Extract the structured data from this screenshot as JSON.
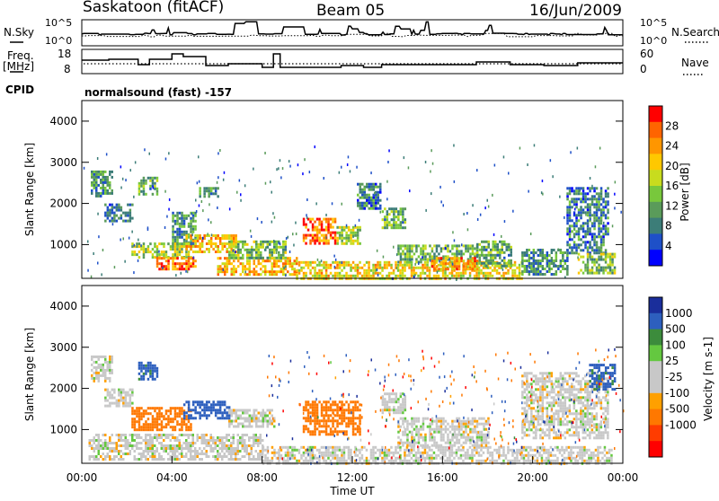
{
  "header": {
    "site": "Saskatoon (fitACF)",
    "beam": "Beam 05",
    "date": "16/Jun/2009"
  },
  "strip_nsky": {
    "left_label": "N.Sky",
    "left_ticks": [
      "10^5",
      "10^0"
    ],
    "right_label": "N.Search",
    "right_ticks": [
      "10^5",
      "10^0"
    ]
  },
  "strip_freq": {
    "left_label_1": "Freq.",
    "left_label_2": "[MHz]",
    "left_ticks": [
      "18",
      "8"
    ],
    "right_label": "Nave",
    "right_ticks": [
      "60",
      "0"
    ]
  },
  "cpid": {
    "label": "CPID",
    "value": "normalsound (fast) -157"
  },
  "colors": {
    "power_scale": [
      "#0000ff",
      "#1e50c8",
      "#3c7d78",
      "#5a9b5a",
      "#78c83c",
      "#c8dc1e",
      "#ffc800",
      "#ff9600",
      "#ff6400",
      "#ff0000"
    ],
    "velocity_scale": [
      "#1a2e9b",
      "#2d5fbe",
      "#3c8c3c",
      "#64c840",
      "#c8c8c8",
      "#c8c8c8",
      "#ffa000",
      "#ff7800",
      "#ff3c00",
      "#ff0000"
    ]
  },
  "chart_data": [
    {
      "type": "heatmap",
      "panel": "power",
      "ylabel": "Slant Range [km]",
      "xlabel": "",
      "ylim": [
        180,
        4500
      ],
      "yticks": [
        1000,
        2000,
        3000,
        4000
      ],
      "xlim": [
        0,
        24
      ],
      "colorbar": {
        "label": "Power [dB]",
        "range": [
          0,
          32
        ],
        "ticks": [
          4,
          8,
          12,
          16,
          20,
          24,
          28
        ]
      },
      "regions": [
        {
          "t0": 0.4,
          "t1": 1.3,
          "r0": 2200,
          "r1": 2800,
          "v": 10
        },
        {
          "t0": 1.0,
          "t1": 2.2,
          "r0": 1600,
          "r1": 2000,
          "v": 7
        },
        {
          "t0": 2.5,
          "t1": 3.3,
          "r0": 2250,
          "r1": 2650,
          "v": 12
        },
        {
          "t0": 4.0,
          "t1": 5.0,
          "r0": 1000,
          "r1": 1800,
          "v": 10
        },
        {
          "t0": 5.2,
          "t1": 6.0,
          "r0": 2150,
          "r1": 2400,
          "v": 10
        },
        {
          "t0": 2.2,
          "t1": 4.8,
          "r0": 700,
          "r1": 1050,
          "v": 16
        },
        {
          "t0": 3.3,
          "t1": 5.0,
          "r0": 400,
          "r1": 700,
          "v": 26
        },
        {
          "t0": 4.6,
          "t1": 6.8,
          "r0": 850,
          "r1": 1250,
          "v": 22
        },
        {
          "t0": 6.0,
          "t1": 9.5,
          "r0": 300,
          "r1": 700,
          "v": 22
        },
        {
          "t0": 6.5,
          "t1": 9.0,
          "r0": 700,
          "r1": 1100,
          "v": 14
        },
        {
          "t0": 9.8,
          "t1": 11.2,
          "r0": 1000,
          "r1": 1650,
          "v": 26
        },
        {
          "t0": 11.3,
          "t1": 12.3,
          "r0": 1050,
          "r1": 1450,
          "v": 16
        },
        {
          "t0": 12.2,
          "t1": 13.2,
          "r0": 1900,
          "r1": 2500,
          "v": 8
        },
        {
          "t0": 13.3,
          "t1": 14.3,
          "r0": 1400,
          "r1": 1900,
          "v": 12
        },
        {
          "t0": 14.0,
          "t1": 17.5,
          "r0": 600,
          "r1": 1000,
          "v": 13
        },
        {
          "t0": 9.5,
          "t1": 19.5,
          "r0": 200,
          "r1": 600,
          "v": 20
        },
        {
          "t0": 15.5,
          "t1": 17.5,
          "r0": 400,
          "r1": 700,
          "v": 24
        },
        {
          "t0": 17.5,
          "t1": 19.0,
          "r0": 500,
          "r1": 1100,
          "v": 12
        },
        {
          "t0": 19.5,
          "t1": 21.5,
          "r0": 250,
          "r1": 900,
          "v": 10
        },
        {
          "t0": 21.5,
          "t1": 23.3,
          "r0": 800,
          "r1": 2400,
          "v": 8
        },
        {
          "t0": 22.0,
          "t1": 23.6,
          "r0": 300,
          "r1": 800,
          "v": 14
        }
      ]
    },
    {
      "type": "heatmap",
      "panel": "velocity",
      "ylabel": "Slant Range [km]",
      "xlabel": "Time UT",
      "ylim": [
        180,
        4500
      ],
      "yticks": [
        1000,
        2000,
        3000,
        4000
      ],
      "xlim": [
        0,
        24
      ],
      "xticks": [
        "00:00",
        "04:00",
        "08:00",
        "12:00",
        "16:00",
        "20:00",
        "00:00"
      ],
      "colorbar": {
        "label": "Velocity [m s-1]",
        "ticks": [
          "1000",
          "500",
          "100",
          "25",
          "-25",
          "-100",
          "-500",
          "-1000"
        ]
      },
      "regions": [
        {
          "t0": 0.4,
          "t1": 1.3,
          "r0": 2200,
          "r1": 2800,
          "v": 0
        },
        {
          "t0": 1.0,
          "t1": 2.2,
          "r0": 1600,
          "r1": 2000,
          "v": 0
        },
        {
          "t0": 2.5,
          "t1": 3.3,
          "r0": 2250,
          "r1": 2650,
          "v": 120
        },
        {
          "t0": 2.2,
          "t1": 4.8,
          "r0": 1000,
          "r1": 1550,
          "v": -200
        },
        {
          "t0": 4.5,
          "t1": 6.5,
          "r0": 1300,
          "r1": 1700,
          "v": 150
        },
        {
          "t0": 6.5,
          "t1": 8.5,
          "r0": 1100,
          "r1": 1500,
          "v": 0
        },
        {
          "t0": 0.3,
          "t1": 8.0,
          "r0": 300,
          "r1": 900,
          "v": 0
        },
        {
          "t0": 9.8,
          "t1": 12.3,
          "r0": 900,
          "r1": 1700,
          "v": -200
        },
        {
          "t0": 8.0,
          "t1": 23.5,
          "r0": 200,
          "r1": 600,
          "v": 0
        },
        {
          "t0": 13.3,
          "t1": 14.3,
          "r0": 1400,
          "r1": 1900,
          "v": 0
        },
        {
          "t0": 14.0,
          "t1": 18.0,
          "r0": 600,
          "r1": 1300,
          "v": 0
        },
        {
          "t0": 19.5,
          "t1": 23.3,
          "r0": 800,
          "r1": 2400,
          "v": 0
        },
        {
          "t0": 22.5,
          "t1": 23.6,
          "r0": 2000,
          "r1": 2600,
          "v": 120
        }
      ]
    }
  ]
}
